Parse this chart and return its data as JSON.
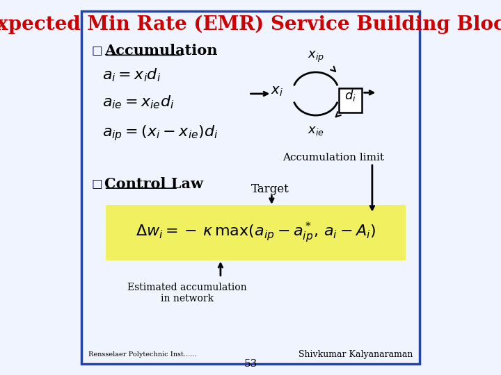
{
  "title": "Expected Min Rate (EMR) Service Building Block",
  "title_color": "#cc0000",
  "title_fontsize": 20,
  "bg_color": "#f0f4ff",
  "border_color": "#2244aa",
  "slide_number": "53",
  "footer_left": "Rensselaer Polytechnic Inst......",
  "footer_right": "Shivkumar Kalyanaraman",
  "bullet_color": "#000080",
  "section1_label": "Accumulation",
  "section2_label": "Control Law",
  "formula_eq1": "$a_i = x_i d_i$",
  "formula_eq2": "$a_{ie} = x_{ie} d_i$",
  "formula_eq3": "$a_{ip} = (x_i - x_{ie})d_i$",
  "formula_main": "$\\Delta w_i = -\\, \\kappa\\, \\max(a_{ip} - a^*_{ip},\\, a_i - A_i)$",
  "annotation_accum_limit": "Accumulation limit",
  "annotation_target": "Target",
  "annotation_estimated": "Estimated accumulation\nin network",
  "yellow_bg": "#f0f060",
  "diagram_xi": "$x_i$",
  "diagram_xip": "$x_{ip}$",
  "diagram_xie": "$x_{ie}$",
  "diagram_di": "$d_i$"
}
